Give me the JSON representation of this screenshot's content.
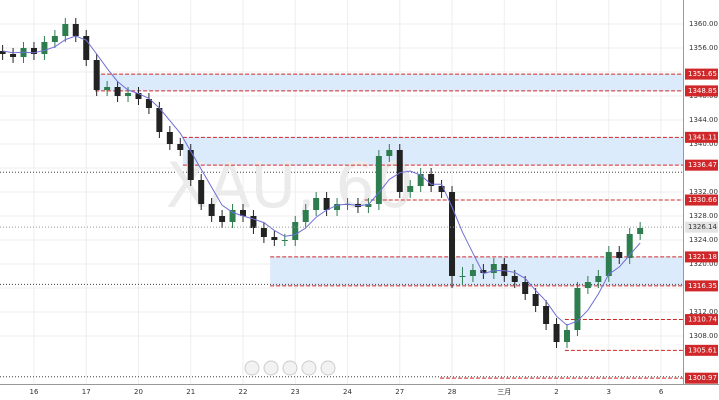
{
  "chart_data": {
    "type": "candlestick",
    "watermark": "XAU, 60",
    "xlim": [
      -0.65,
      12.42
    ],
    "ylim": [
      1300,
      1364
    ],
    "grid": true,
    "up_color": "#2e7d4f",
    "down_color": "#222222",
    "xticks": [
      {
        "value": 0,
        "label": "16"
      },
      {
        "value": 1,
        "label": "17"
      },
      {
        "value": 2,
        "label": "20"
      },
      {
        "value": 3,
        "label": "21"
      },
      {
        "value": 4,
        "label": "22"
      },
      {
        "value": 5,
        "label": "23"
      },
      {
        "value": 6,
        "label": "24"
      },
      {
        "value": 7,
        "label": "27"
      },
      {
        "value": 8,
        "label": "28"
      },
      {
        "value": 9,
        "label": "三月"
      },
      {
        "value": 10,
        "label": "2"
      },
      {
        "value": 11,
        "label": "3"
      },
      {
        "value": 12,
        "label": "6"
      }
    ],
    "yticks": [
      {
        "value": 1308,
        "label": "1308.00"
      },
      {
        "value": 1312,
        "label": "1312.00"
      },
      {
        "value": 1316,
        "label": "1316.00"
      },
      {
        "value": 1320,
        "label": "1320.00"
      },
      {
        "value": 1324,
        "label": "1324.00"
      },
      {
        "value": 1328,
        "label": "1328.00"
      },
      {
        "value": 1332,
        "label": "1332.00"
      },
      {
        "value": 1336,
        "label": "1336.00"
      },
      {
        "value": 1340,
        "label": "1340.00"
      },
      {
        "value": 1344,
        "label": "1344.00"
      },
      {
        "value": 1348,
        "label": "1348.00"
      },
      {
        "value": 1352,
        "label": "1352.00"
      },
      {
        "value": 1356,
        "label": "1356.00"
      },
      {
        "value": 1360,
        "label": "1360.00"
      }
    ],
    "candles": {
      "x": [
        -0.6,
        -0.4,
        -0.2,
        0,
        0.2,
        0.4,
        0.6,
        0.8,
        1.0,
        1.2,
        1.4,
        1.6,
        1.8,
        2.0,
        2.2,
        2.4,
        2.6,
        2.8,
        3.0,
        3.2,
        3.4,
        3.6,
        3.8,
        4.0,
        4.2,
        4.4,
        4.6,
        4.8,
        5.0,
        5.2,
        5.4,
        5.6,
        5.8,
        6.0,
        6.2,
        6.4,
        6.6,
        6.8,
        7.0,
        7.2,
        7.4,
        7.6,
        7.8,
        8.0,
        8.2,
        8.4,
        8.6,
        8.8,
        9.0,
        9.2,
        9.4,
        9.6,
        9.8,
        10.0,
        10.2,
        10.4,
        10.6,
        10.8,
        11.0,
        11.2,
        11.4,
        11.6
      ],
      "open": [
        1355.5,
        1355,
        1354.5,
        1356,
        1355,
        1357,
        1358,
        1360,
        1358,
        1354,
        1349,
        1349.5,
        1348,
        1348.5,
        1347.5,
        1346,
        1342,
        1340,
        1339,
        1334,
        1330,
        1328,
        1327,
        1329,
        1328,
        1326,
        1324.5,
        1324,
        1324,
        1327,
        1329,
        1331,
        1329,
        1330,
        1330,
        1329.5,
        1330,
        1338,
        1339,
        1332,
        1333,
        1335,
        1333,
        1332,
        1318,
        1318,
        1319,
        1318.5,
        1320,
        1318,
        1317,
        1315,
        1313,
        1310,
        1307,
        1309,
        1316,
        1317,
        1318,
        1322,
        1321,
        1325
      ],
      "high": [
        1356.5,
        1356,
        1357,
        1357,
        1358,
        1359,
        1361,
        1361,
        1359,
        1355,
        1350.5,
        1350.5,
        1349.5,
        1349.5,
        1348.5,
        1347,
        1343,
        1341,
        1340,
        1335,
        1331,
        1329,
        1330,
        1330,
        1329,
        1327,
        1325.5,
        1325,
        1328,
        1330,
        1332,
        1332,
        1331,
        1331,
        1331,
        1331,
        1339,
        1340,
        1340,
        1334,
        1336,
        1336,
        1334,
        1333,
        1319.5,
        1320,
        1320,
        1321,
        1321,
        1319,
        1318,
        1316,
        1314,
        1311,
        1310,
        1317,
        1318,
        1319,
        1323,
        1323,
        1326,
        1327
      ],
      "low": [
        1354,
        1353.5,
        1353.5,
        1354,
        1354,
        1356,
        1357,
        1357,
        1353,
        1348,
        1348,
        1347,
        1347,
        1346.5,
        1345,
        1341,
        1339,
        1338,
        1333,
        1329,
        1327,
        1326,
        1326,
        1327,
        1325,
        1323.5,
        1323,
        1323,
        1323,
        1326,
        1328,
        1328,
        1328,
        1329,
        1328.5,
        1328.5,
        1329,
        1337,
        1331,
        1331,
        1332,
        1332,
        1331,
        1316,
        1316.5,
        1317,
        1317.5,
        1317.5,
        1317,
        1316,
        1314,
        1312,
        1309,
        1306,
        1306,
        1308,
        1315,
        1316,
        1317,
        1320,
        1320,
        1324
      ],
      "close": [
        1355,
        1354.5,
        1356,
        1355,
        1357,
        1358,
        1360,
        1358,
        1354,
        1349,
        1349.5,
        1348,
        1348.5,
        1347.5,
        1346,
        1342,
        1340,
        1339,
        1334,
        1330,
        1328,
        1327,
        1329,
        1328,
        1326,
        1324.5,
        1324,
        1324,
        1327,
        1329,
        1331,
        1329,
        1330,
        1330,
        1329.5,
        1330,
        1338,
        1339,
        1332,
        1333,
        1335,
        1333,
        1332,
        1318,
        1318,
        1319,
        1318.5,
        1320,
        1318,
        1317,
        1315,
        1313,
        1310,
        1307,
        1309,
        1316,
        1317,
        1318,
        1322,
        1321,
        1325,
        1326
      ]
    },
    "ma": {
      "color": "#6f6fd8",
      "values": [
        1355.5,
        1355.2,
        1355.3,
        1355.2,
        1355.6,
        1356.2,
        1357.4,
        1358,
        1357.3,
        1355,
        1352.6,
        1350.4,
        1349,
        1348.4,
        1347.6,
        1346,
        1343.9,
        1341.8,
        1338.8,
        1335.8,
        1332.8,
        1329.8,
        1328.6,
        1328,
        1327.5,
        1326.9,
        1325.6,
        1324.6,
        1324.9,
        1326,
        1327.8,
        1329,
        1329.8,
        1330,
        1329.7,
        1329.9,
        1331.9,
        1334.1,
        1335.2,
        1335.5,
        1334.8,
        1333.3,
        1333.3,
        1329.5,
        1325.3,
        1321.8,
        1318.4,
        1318.9,
        1318.9,
        1318.6,
        1317.6,
        1315.6,
        1313.8,
        1311.3,
        1309.8,
        1310.5,
        1312.3,
        1315,
        1318.3,
        1319.5,
        1321.5,
        1323.5
      ]
    },
    "zones": [
      {
        "x0": 1.17,
        "low": 1348.85,
        "high": 1351.65
      },
      {
        "x0": 2.85,
        "low": 1336.47,
        "high": 1341.11
      },
      {
        "x0": 4.52,
        "low": 1316.35,
        "high": 1321.18
      }
    ],
    "zone_color": "#dcebfb",
    "guides": [
      1335.3,
      1316.6,
      1301.2
    ],
    "levels": [
      {
        "value": 1351.65,
        "x0": 1.17
      },
      {
        "value": 1348.85,
        "x0": 1.17
      },
      {
        "value": 1341.11,
        "x0": 2.85
      },
      {
        "value": 1336.47,
        "x0": 2.85
      },
      {
        "value": 1330.66,
        "x0": 6.33
      },
      {
        "value": 1321.18,
        "x0": 4.52
      },
      {
        "value": 1316.35,
        "x0": 4.52
      },
      {
        "value": 1310.74,
        "x0": 10.16
      },
      {
        "value": 1305.61,
        "x0": 10.16
      },
      {
        "value": 1300.97,
        "x0": 7.77
      }
    ],
    "level_color": "#d0282a",
    "last_price": 1326.14
  }
}
